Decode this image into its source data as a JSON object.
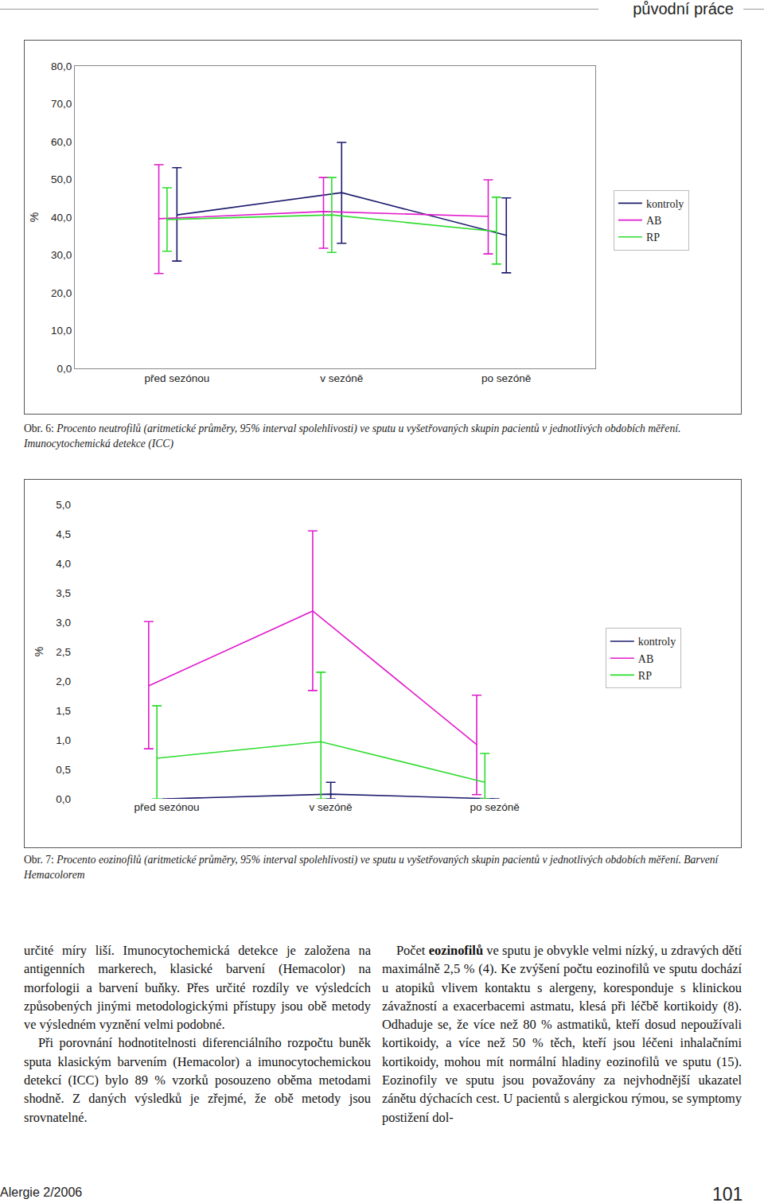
{
  "page": {
    "header": "původní práce",
    "captions": [
      {
        "label": "Obr. 6:",
        "text": "Procento neutrofilů (aritmetické průměry, 95% interval spolehlivosti) ve sputu u vyšetřovaných skupin pacientů v jednotlivých obdobích měření. Imunocytochemická detekce (ICC)"
      },
      {
        "label": "Obr. 7:",
        "text": "Procento eozinofilů (aritmetické průměry, 95% interval spolehlivosti) ve sputu u vyšetřovaných skupin pacientů v jednotlivých obdobích měření. Barvení Hemacolorem"
      }
    ],
    "left_column": [
      "určité míry liší. Imunocytochemická detekce je založena na antigenních markerech, klasické barvení (Hemacolor) na morfologii a barvení buňky. Přes určité rozdíly ve výsledcích způsobených jinými metodologickými přístupy jsou obě metody ve výsledném vyznění velmi podobné.",
      "Při porovnání hodnotitelnosti diferenciálního rozpočtu buněk sputa klasickým barvením (Hemacolor) a imunocytochemickou detekcí (ICC) bylo 89 % vzorků posouzeno oběma metodami shodně. Z daných výsledků je zřejmé, že obě metody jsou srovnatelné."
    ],
    "right_column": {
      "before": "Počet ",
      "bold": "eozinofilů",
      "after": " ve sputu je obvykle velmi nízký, u zdravých dětí maximálně 2,5 % (4). Ke zvýšení počtu eozinofilů ve sputu dochází u atopiků vlivem kontaktu s alergeny, koresponduje s klinickou závažností a exacerbacemi astmatu, klesá při léčbě kortikoidy (8). Odhaduje se, že více než 80 % astmatiků, kteří dosud nepoužívali kortikoidy, a více než 50 % těch, kteří jsou léčeni inhalačními kortikoidy, mohou mít normální hladiny eozinofilů ve sputu (15). Eozinofily ve sputu jsou považovány za nejvhodnější ukazatel zánětu dýchacích cest. U pacientů s alergickou rýmou, se symptomy postižení dol-"
    },
    "footer": {
      "journal": "Alergie 2/2006",
      "page_number": "101"
    }
  },
  "chart_data": [
    {
      "type": "line",
      "y_label": "%",
      "categories": [
        "před sezónou",
        "v sezóně",
        "po sezóně"
      ],
      "ylim": [
        0,
        80
      ],
      "yticks": [
        {
          "value": 0,
          "label": "0,0"
        },
        {
          "value": 10,
          "label": "10,0"
        },
        {
          "value": 20,
          "label": "20,0"
        },
        {
          "value": 30,
          "label": "30,0"
        },
        {
          "value": 40,
          "label": "40,0"
        },
        {
          "value": 50,
          "label": "50,0"
        },
        {
          "value": 60,
          "label": "60,0"
        },
        {
          "value": 70,
          "label": "70,0"
        },
        {
          "value": 80,
          "label": "80,0"
        }
      ],
      "grid": false,
      "legend": "right",
      "line_style": "solid",
      "series": [
        {
          "name": "kontroly",
          "color": "#1c1c6e",
          "values": [
            40.6,
            46.5,
            35.2
          ],
          "ci_low": [
            28.4,
            33.1,
            25.3
          ],
          "ci_high": [
            53.1,
            59.8,
            45.1
          ]
        },
        {
          "name": "AB",
          "color": "#e01ccc",
          "values": [
            39.6,
            41.5,
            40.2
          ],
          "ci_low": [
            25.1,
            31.8,
            30.3
          ],
          "ci_high": [
            53.9,
            50.5,
            49.9
          ]
        },
        {
          "name": "RP",
          "color": "#2edc2e",
          "values": [
            39.4,
            40.6,
            36.2
          ],
          "ci_low": [
            31.0,
            30.7,
            27.6
          ],
          "ci_high": [
            47.8,
            50.5,
            45.3
          ]
        }
      ]
    },
    {
      "type": "line",
      "y_label": "%",
      "categories": [
        "před sezónou",
        "v sezóně",
        "po sezóně"
      ],
      "ylim": [
        0,
        5
      ],
      "yticks": [
        {
          "value": 0,
          "label": "0,0"
        },
        {
          "value": 0.5,
          "label": "0,5"
        },
        {
          "value": 1,
          "label": "1,0"
        },
        {
          "value": 1.5,
          "label": "1,5"
        },
        {
          "value": 2,
          "label": "2,0"
        },
        {
          "value": 2.5,
          "label": "2,5"
        },
        {
          "value": 3,
          "label": "3,0"
        },
        {
          "value": 3.5,
          "label": "3,5"
        },
        {
          "value": 4,
          "label": "4,0"
        },
        {
          "value": 4.5,
          "label": "4,5"
        },
        {
          "value": 5,
          "label": "5,0"
        }
      ],
      "grid": false,
      "legend": "right",
      "line_style": "solid",
      "series": [
        {
          "name": "kontroly",
          "color": "#1c1c6e",
          "values": [
            0,
            0.08,
            0
          ],
          "ci_low": [
            0,
            0,
            0
          ],
          "ci_high": [
            0,
            0.28,
            0
          ]
        },
        {
          "name": "AB",
          "color": "#e01ccc",
          "values": [
            1.92,
            3.19,
            0.92
          ],
          "ci_low": [
            0.85,
            1.84,
            0.07
          ],
          "ci_high": [
            3.01,
            4.55,
            1.76
          ]
        },
        {
          "name": "RP",
          "color": "#2edc2e",
          "values": [
            0.69,
            0.97,
            0.28
          ],
          "ci_low": [
            0,
            0,
            0
          ],
          "ci_high": [
            1.58,
            2.15,
            0.77
          ]
        }
      ]
    }
  ]
}
